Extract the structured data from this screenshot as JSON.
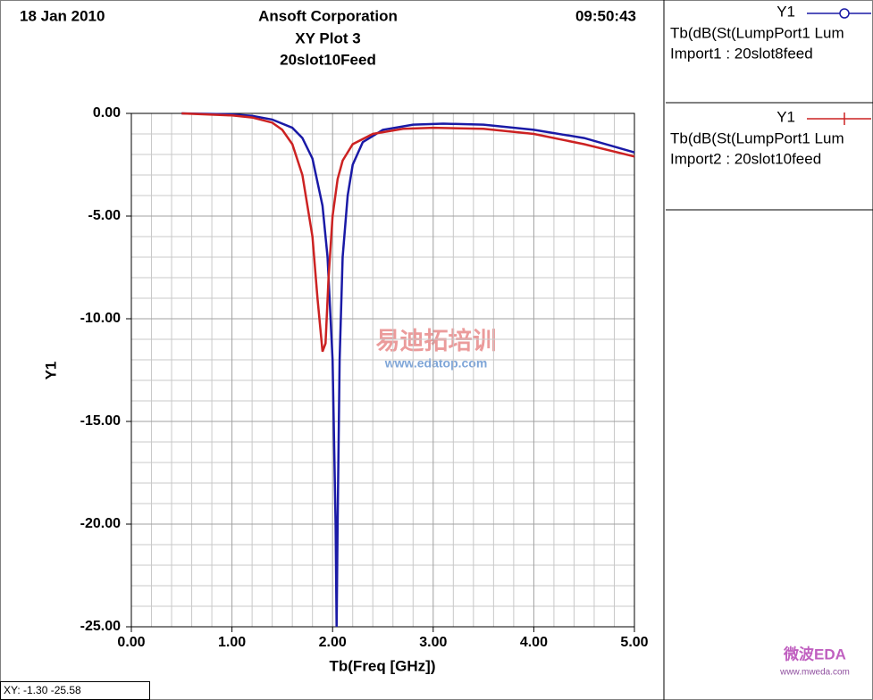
{
  "chart_data": {
    "type": "line",
    "date": "18 Jan 2010",
    "company": "Ansoft Corporation",
    "time": "09:50:43",
    "title": "XY Plot 3",
    "subtitle": "20slot10Feed",
    "x_label": "Tb(Freq [GHz])",
    "y_label": "Y1",
    "xlim": [
      0,
      5
    ],
    "ylim": [
      -25,
      0
    ],
    "xticks": [
      {
        "value": 0,
        "label": "0.00"
      },
      {
        "value": 1,
        "label": "1.00"
      },
      {
        "value": 2,
        "label": "2.00"
      },
      {
        "value": 3,
        "label": "3.00"
      },
      {
        "value": 4,
        "label": "4.00"
      },
      {
        "value": 5,
        "label": "5.00"
      }
    ],
    "yticks": [
      {
        "value": 0,
        "label": "0.00"
      },
      {
        "value": -5,
        "label": "-5.00"
      },
      {
        "value": -10,
        "label": "-10.00"
      },
      {
        "value": -15,
        "label": "-15.00"
      },
      {
        "value": -20,
        "label": "-20.00"
      },
      {
        "value": -25,
        "label": "-25.00"
      }
    ],
    "grid": true,
    "series": [
      {
        "name": "Import1 : 20slot8feed",
        "axis_name": "Y1",
        "expression": "Tb(dB(St(LumpPort1 Lum",
        "color": "#1a1aa6",
        "x": [
          0.5,
          1.0,
          1.2,
          1.4,
          1.6,
          1.7,
          1.8,
          1.9,
          1.95,
          2.0,
          2.03,
          2.04,
          2.05,
          2.07,
          2.1,
          2.15,
          2.2,
          2.3,
          2.5,
          2.8,
          3.1,
          3.5,
          4.0,
          4.5,
          5.0
        ],
        "values": [
          0,
          -0.05,
          -0.12,
          -0.3,
          -0.7,
          -1.2,
          -2.2,
          -4.5,
          -7,
          -12,
          -20,
          -25,
          -20,
          -12,
          -7,
          -4,
          -2.5,
          -1.4,
          -0.8,
          -0.55,
          -0.5,
          -0.55,
          -0.8,
          -1.2,
          -1.9
        ]
      },
      {
        "name": "Import2 : 20slot10feed",
        "axis_name": "Y1",
        "expression": "Tb(dB(St(LumpPort1 Lum",
        "color": "#cc2222",
        "x": [
          0.5,
          1.0,
          1.2,
          1.4,
          1.5,
          1.6,
          1.7,
          1.8,
          1.85,
          1.9,
          1.93,
          1.96,
          2.0,
          2.05,
          2.1,
          2.2,
          2.4,
          2.7,
          3.0,
          3.5,
          4.0,
          4.5,
          5.0
        ],
        "values": [
          0,
          -0.1,
          -0.2,
          -0.45,
          -0.8,
          -1.5,
          -3,
          -6,
          -9,
          -11.6,
          -11.2,
          -8,
          -5,
          -3.2,
          -2.3,
          -1.5,
          -1.0,
          -0.75,
          -0.7,
          -0.75,
          -1.0,
          -1.5,
          -2.1
        ]
      }
    ],
    "status": "XY: -1.30 -25.58",
    "watermark": {
      "cn": "易迪拓培训",
      "url": "www.edatop.com"
    },
    "watermark2": {
      "name": "微波EDA",
      "url": "www.mweda.com"
    }
  }
}
